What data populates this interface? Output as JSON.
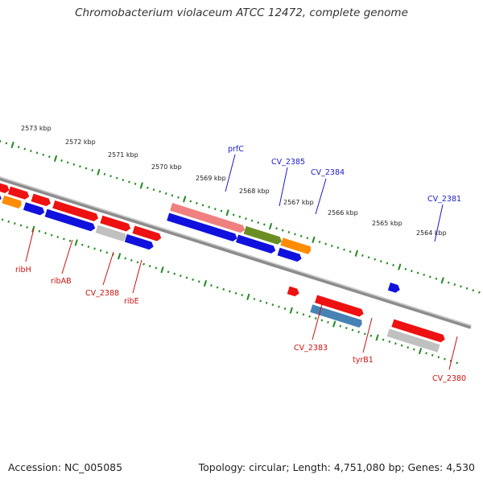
{
  "title": "Chromobacterium violaceum ATCC 12472, complete genome",
  "accession": "Accession: NC_005085",
  "summary": "Topology: circular; Length: 4,751,080 bp; Genes: 4,530",
  "colors": {
    "backbone": "#888888",
    "tick": "#2a8a2a",
    "gene_red": "#ee1111",
    "gene_blue": "#1111dd",
    "gene_orange": "#ff8c00",
    "gene_pink": "#f08080",
    "gene_olive": "#6b8e23",
    "gene_steel": "#4682b4",
    "gene_gray": "#c0c0c0",
    "label_blue": "#1a1acc",
    "label_red": "#cc1111"
  },
  "kbp_labels": [
    "2573 kbp",
    "2572 kbp",
    "2571 kbp",
    "2570 kbp",
    "2569 kbp",
    "2568 kbp",
    "2567 kbp",
    "2566 kbp",
    "2565 kbp",
    "2564 kbp"
  ],
  "gene_labels_top": [
    "prfC",
    "CV_2385",
    "CV_2384",
    "CV_2381"
  ],
  "gene_labels_bottom": [
    "ribH",
    "ribAB",
    "CV_2388",
    "ribE",
    "CV_2383",
    "tyrB1",
    "CV_2380"
  ]
}
